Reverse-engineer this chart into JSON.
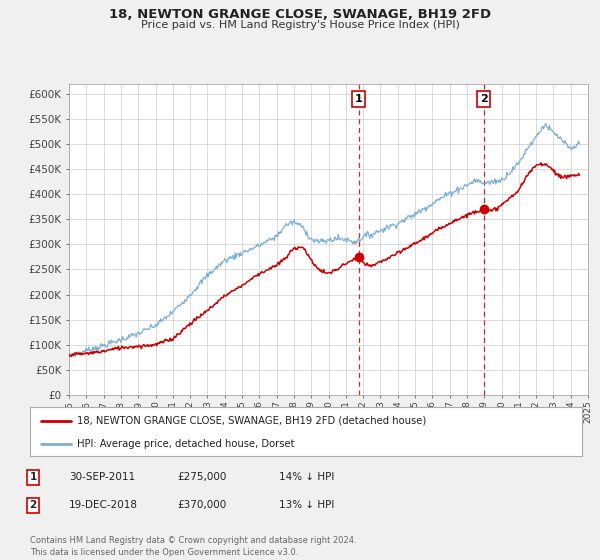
{
  "title": "18, NEWTON GRANGE CLOSE, SWANAGE, BH19 2FD",
  "subtitle": "Price paid vs. HM Land Registry's House Price Index (HPI)",
  "ylabel_ticks": [
    "£0",
    "£50K",
    "£100K",
    "£150K",
    "£200K",
    "£250K",
    "£300K",
    "£350K",
    "£400K",
    "£450K",
    "£500K",
    "£550K",
    "£600K"
  ],
  "ytick_vals": [
    0,
    50000,
    100000,
    150000,
    200000,
    250000,
    300000,
    350000,
    400000,
    450000,
    500000,
    550000,
    600000
  ],
  "ylim": [
    0,
    620000
  ],
  "background_color": "#f0f0f0",
  "plot_bg_color": "#ffffff",
  "grid_color": "#cccccc",
  "red_line_color": "#cc0000",
  "blue_line_color": "#7bafd4",
  "marker1_date_x": 2011.75,
  "marker1_y": 275000,
  "marker2_date_x": 2018.96,
  "marker2_y": 370000,
  "vline1_x": 2011.75,
  "vline2_x": 2018.96,
  "legend_label_red": "18, NEWTON GRANGE CLOSE, SWANAGE, BH19 2FD (detached house)",
  "legend_label_blue": "HPI: Average price, detached house, Dorset",
  "table_row1": [
    "1",
    "30-SEP-2011",
    "£275,000",
    "14% ↓ HPI"
  ],
  "table_row2": [
    "2",
    "19-DEC-2018",
    "£370,000",
    "13% ↓ HPI"
  ],
  "footnote": "Contains HM Land Registry data © Crown copyright and database right 2024.\nThis data is licensed under the Open Government Licence v3.0.",
  "xmin": 1995,
  "xmax": 2025,
  "blue_pts": [
    [
      1995.0,
      78000
    ],
    [
      1996.0,
      88000
    ],
    [
      1997.0,
      98000
    ],
    [
      1998.0,
      110000
    ],
    [
      1999.0,
      122000
    ],
    [
      2000.0,
      138000
    ],
    [
      2001.0,
      165000
    ],
    [
      2002.0,
      200000
    ],
    [
      2003.0,
      238000
    ],
    [
      2004.0,
      268000
    ],
    [
      2005.0,
      283000
    ],
    [
      2006.0,
      298000
    ],
    [
      2007.0,
      316000
    ],
    [
      2007.5,
      338000
    ],
    [
      2008.0,
      345000
    ],
    [
      2008.5,
      335000
    ],
    [
      2009.0,
      310000
    ],
    [
      2009.5,
      305000
    ],
    [
      2010.0,
      308000
    ],
    [
      2010.5,
      312000
    ],
    [
      2011.0,
      310000
    ],
    [
      2011.5,
      305000
    ],
    [
      2011.75,
      308000
    ],
    [
      2012.0,
      316000
    ],
    [
      2012.5,
      320000
    ],
    [
      2013.0,
      328000
    ],
    [
      2014.0,
      342000
    ],
    [
      2015.0,
      360000
    ],
    [
      2016.0,
      382000
    ],
    [
      2017.0,
      402000
    ],
    [
      2018.0,
      418000
    ],
    [
      2018.5,
      428000
    ],
    [
      2019.0,
      422000
    ],
    [
      2019.5,
      425000
    ],
    [
      2020.0,
      428000
    ],
    [
      2020.5,
      445000
    ],
    [
      2021.0,
      462000
    ],
    [
      2021.5,
      492000
    ],
    [
      2022.0,
      515000
    ],
    [
      2022.5,
      540000
    ],
    [
      2023.0,
      522000
    ],
    [
      2023.5,
      508000
    ],
    [
      2024.0,
      488000
    ],
    [
      2024.5,
      502000
    ]
  ],
  "red_pts": [
    [
      1995.0,
      80000
    ],
    [
      1996.0,
      82000
    ],
    [
      1997.0,
      87000
    ],
    [
      1998.0,
      94000
    ],
    [
      1999.0,
      97000
    ],
    [
      2000.0,
      100000
    ],
    [
      2001.0,
      112000
    ],
    [
      2002.0,
      142000
    ],
    [
      2003.0,
      168000
    ],
    [
      2004.0,
      198000
    ],
    [
      2005.0,
      218000
    ],
    [
      2006.0,
      242000
    ],
    [
      2007.0,
      258000
    ],
    [
      2007.5,
      272000
    ],
    [
      2008.0,
      292000
    ],
    [
      2008.5,
      296000
    ],
    [
      2009.0,
      268000
    ],
    [
      2009.5,
      248000
    ],
    [
      2010.0,
      242000
    ],
    [
      2010.5,
      250000
    ],
    [
      2011.0,
      262000
    ],
    [
      2011.5,
      270000
    ],
    [
      2011.75,
      275000
    ],
    [
      2012.0,
      263000
    ],
    [
      2012.5,
      256000
    ],
    [
      2013.0,
      265000
    ],
    [
      2014.0,
      282000
    ],
    [
      2015.0,
      302000
    ],
    [
      2016.0,
      322000
    ],
    [
      2017.0,
      343000
    ],
    [
      2018.0,
      358000
    ],
    [
      2018.5,
      366000
    ],
    [
      2018.96,
      370000
    ],
    [
      2019.0,
      362000
    ],
    [
      2019.5,
      368000
    ],
    [
      2020.0,
      378000
    ],
    [
      2021.0,
      408000
    ],
    [
      2021.5,
      438000
    ],
    [
      2022.0,
      458000
    ],
    [
      2022.5,
      462000
    ],
    [
      2023.0,
      448000
    ],
    [
      2023.5,
      432000
    ],
    [
      2024.0,
      438000
    ],
    [
      2024.5,
      438000
    ]
  ]
}
